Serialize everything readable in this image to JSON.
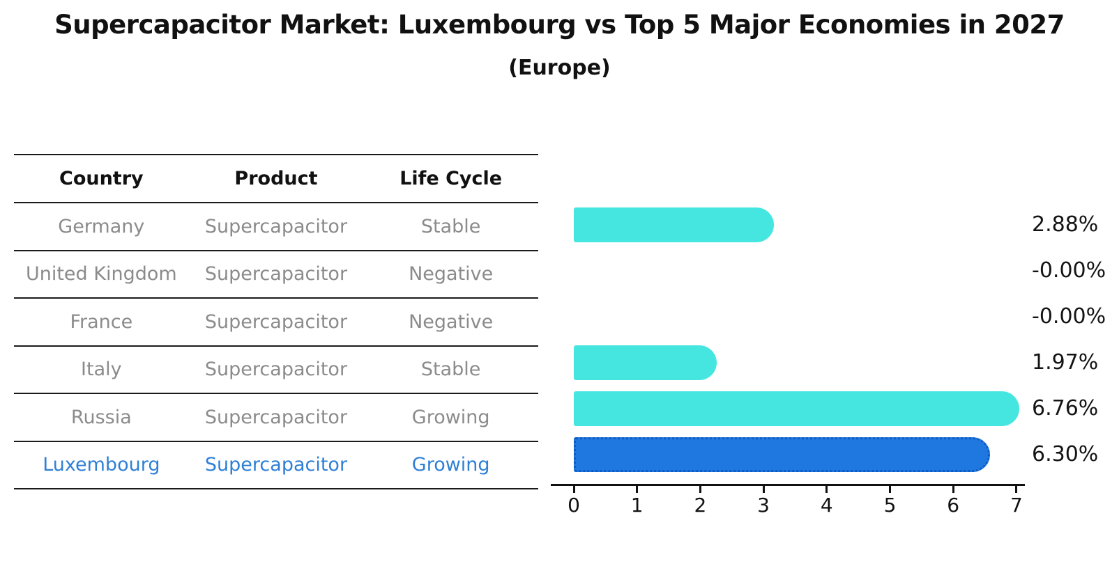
{
  "title": "Supercapacitor Market: Luxembourg vs Top 5 Major Economies in 2027",
  "subtitle": "(Europe)",
  "table": {
    "headers": [
      "Country",
      "Product",
      "Life Cycle"
    ],
    "rows": [
      {
        "country": "Germany",
        "product": "Supercapacitor",
        "life_cycle": "Stable",
        "highlight": false
      },
      {
        "country": "United Kingdom",
        "product": "Supercapacitor",
        "life_cycle": "Negative",
        "highlight": false
      },
      {
        "country": "France",
        "product": "Supercapacitor",
        "life_cycle": "Negative",
        "highlight": false
      },
      {
        "country": "Italy",
        "product": "Supercapacitor",
        "life_cycle": "Stable",
        "highlight": false
      },
      {
        "country": "Russia",
        "product": "Supercapacitor",
        "life_cycle": "Growing",
        "highlight": false
      },
      {
        "country": "Luxembourg",
        "product": "Supercapacitor",
        "life_cycle": "Growing",
        "highlight": true
      }
    ]
  },
  "chart_data": {
    "type": "bar",
    "orientation": "horizontal",
    "categories": [
      "Germany",
      "United Kingdom",
      "France",
      "Italy",
      "Russia",
      "Luxembourg"
    ],
    "values": [
      2.88,
      -0.0,
      -0.0,
      1.97,
      6.76,
      6.3
    ],
    "value_labels": [
      "2.88%",
      "-0.00%",
      "-0.00%",
      "1.97%",
      "6.76%",
      "6.30%"
    ],
    "title": "Supercapacitor Market: Luxembourg vs Top 5 Major Economies in 2027",
    "subtitle": "(Europe)",
    "xlabel": "",
    "ylabel": "",
    "xlim": [
      0,
      7
    ],
    "xticks": [
      "0",
      "1",
      "2",
      "3",
      "4",
      "5",
      "6",
      "7"
    ],
    "grid": false,
    "legend": "none",
    "bar_color": "#45e6e0",
    "highlight_color": "#1f78e0",
    "highlight_border_color": "#0c5cc4",
    "highlight_index": 5
  },
  "colors": {
    "row_text": "#8b8b8b",
    "header_text": "#111111",
    "highlight_text": "#2e7fd6",
    "axis": "#111111"
  }
}
